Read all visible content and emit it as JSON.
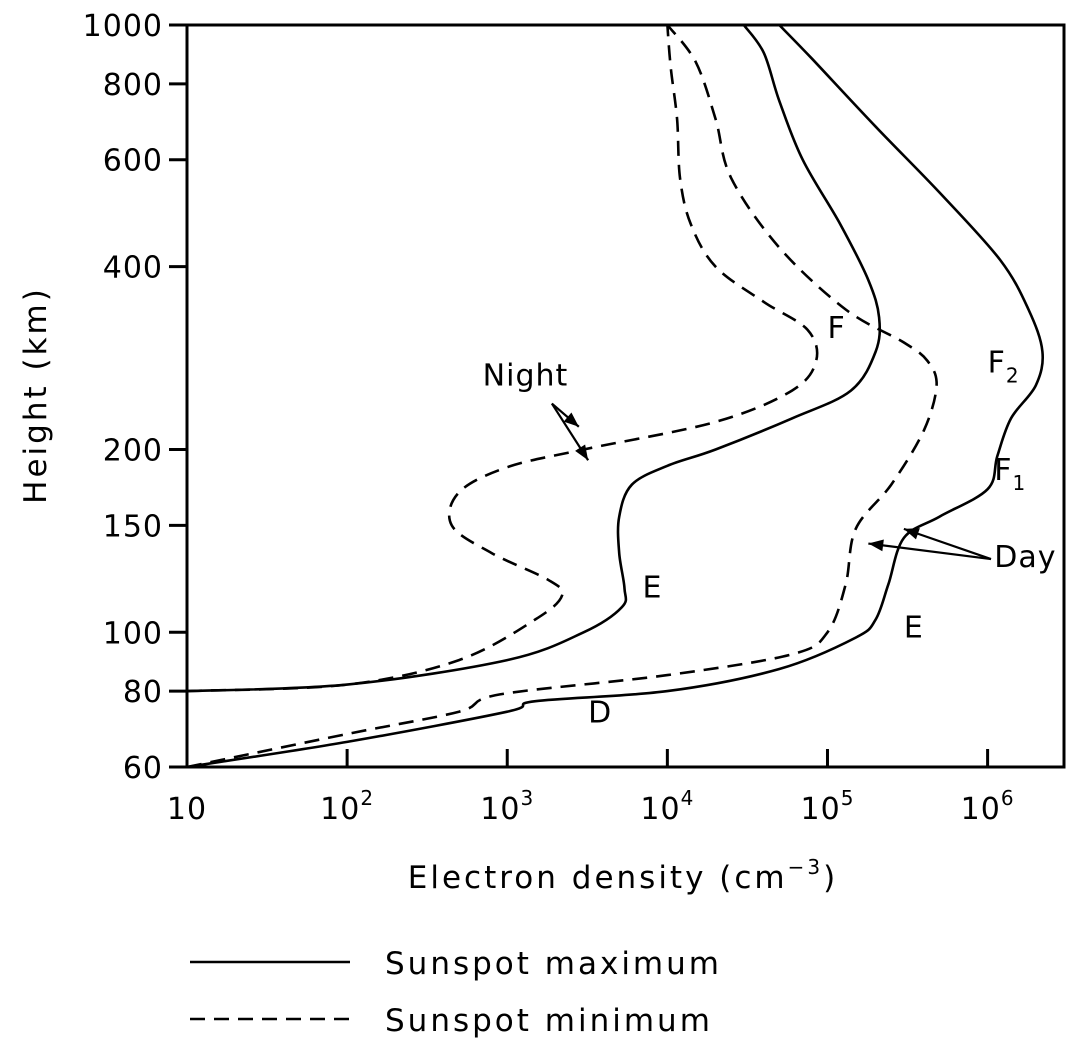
{
  "chart_data": {
    "type": "line",
    "title": "",
    "xlabel": "Electron density (cm",
    "xlabel_exp": "−3",
    "xlabel_close": ")",
    "ylabel": "Height (km)",
    "xscale": "log",
    "yscale": "log",
    "xlim": [
      10,
      3000000
    ],
    "ylim": [
      60,
      1000
    ],
    "grid": false,
    "legend_placement": "bottom",
    "x_ticks": [
      {
        "value": 10,
        "base": "10",
        "exp": ""
      },
      {
        "value": 100,
        "base": "10",
        "exp": "2"
      },
      {
        "value": 1000,
        "base": "10",
        "exp": "3"
      },
      {
        "value": 10000,
        "base": "10",
        "exp": "4"
      },
      {
        "value": 100000,
        "base": "10",
        "exp": "5"
      },
      {
        "value": 1000000,
        "base": "10",
        "exp": "6"
      }
    ],
    "y_ticks": [
      {
        "value": 1000,
        "label": "1000"
      },
      {
        "value": 800,
        "label": "800"
      },
      {
        "value": 600,
        "label": "600"
      },
      {
        "value": 400,
        "label": "400"
      },
      {
        "value": 200,
        "label": "200"
      },
      {
        "value": 150,
        "label": "150"
      },
      {
        "value": 100,
        "label": "100"
      },
      {
        "value": 80,
        "label": "80"
      },
      {
        "value": 60,
        "label": "60"
      }
    ],
    "series": [
      {
        "name": "Sunspot maximum",
        "condition": "Night",
        "style": "solid",
        "points": [
          [
            10,
            80
          ],
          [
            100,
            82
          ],
          [
            1000,
            90
          ],
          [
            3000,
            100
          ],
          [
            5200,
            110
          ],
          [
            5400,
            118
          ],
          [
            5000,
            135
          ],
          [
            5000,
            155
          ],
          [
            6000,
            175
          ],
          [
            10000,
            188
          ],
          [
            20000,
            200
          ],
          [
            60000,
            225
          ],
          [
            140000,
            250
          ],
          [
            200000,
            290
          ],
          [
            210000,
            330
          ],
          [
            180000,
            380
          ],
          [
            120000,
            470
          ],
          [
            70000,
            600
          ],
          [
            50000,
            750
          ],
          [
            40000,
            900
          ],
          [
            30000,
            1000
          ]
        ]
      },
      {
        "name": "Sunspot minimum",
        "condition": "Night",
        "style": "dashed",
        "points": [
          [
            10,
            80
          ],
          [
            100,
            82
          ],
          [
            500,
            90
          ],
          [
            1500,
            105
          ],
          [
            2200,
            115
          ],
          [
            1800,
            122
          ],
          [
            800,
            135
          ],
          [
            450,
            150
          ],
          [
            500,
            170
          ],
          [
            1000,
            187
          ],
          [
            3000,
            200
          ],
          [
            20000,
            222
          ],
          [
            60000,
            250
          ],
          [
            85000,
            280
          ],
          [
            75000,
            315
          ],
          [
            40000,
            350
          ],
          [
            20000,
            400
          ],
          [
            14000,
            470
          ],
          [
            12000,
            560
          ],
          [
            11500,
            700
          ],
          [
            10500,
            850
          ],
          [
            10000,
            1000
          ]
        ]
      },
      {
        "name": "Sunspot maximum",
        "condition": "Day",
        "style": "solid",
        "points": [
          [
            10,
            60
          ],
          [
            100,
            66
          ],
          [
            1000,
            74
          ],
          [
            1500,
            77
          ],
          [
            10000,
            80
          ],
          [
            50000,
            87
          ],
          [
            150000,
            98
          ],
          [
            200000,
            105
          ],
          [
            240000,
            120
          ],
          [
            300000,
            143
          ],
          [
            500000,
            155
          ],
          [
            1000000,
            172
          ],
          [
            1150000,
            195
          ],
          [
            1400000,
            225
          ],
          [
            2000000,
            255
          ],
          [
            2200000,
            290
          ],
          [
            1800000,
            340
          ],
          [
            1200000,
            410
          ],
          [
            500000,
            530
          ],
          [
            200000,
            680
          ],
          [
            80000,
            880
          ],
          [
            50000,
            1000
          ]
        ]
      },
      {
        "name": "Sunspot minimum",
        "condition": "Day",
        "style": "dashed",
        "points": [
          [
            10,
            60
          ],
          [
            100,
            68
          ],
          [
            500,
            74
          ],
          [
            900,
            79
          ],
          [
            10000,
            85
          ],
          [
            60000,
            92
          ],
          [
            100000,
            100
          ],
          [
            130000,
            120
          ],
          [
            150000,
            148
          ],
          [
            250000,
            175
          ],
          [
            400000,
            215
          ],
          [
            480000,
            255
          ],
          [
            420000,
            280
          ],
          [
            300000,
            300
          ],
          [
            130000,
            340
          ],
          [
            50000,
            430
          ],
          [
            25000,
            560
          ],
          [
            20000,
            700
          ],
          [
            15000,
            870
          ],
          [
            10000,
            1000
          ]
        ]
      }
    ],
    "annotations": [
      {
        "text": "Night",
        "sub": "",
        "x": 1300,
        "y": 255,
        "anchor": "middle"
      },
      {
        "text": "Day",
        "sub": "",
        "x": 1100000,
        "y": 128,
        "anchor": "start"
      },
      {
        "text": "F",
        "sub": "",
        "x": 100000,
        "y": 305,
        "anchor": "start"
      },
      {
        "text": "F",
        "sub": "2",
        "x": 1000000,
        "y": 268,
        "anchor": "start"
      },
      {
        "text": "F",
        "sub": "1",
        "x": 1100000,
        "y": 178,
        "anchor": "start"
      },
      {
        "text": "E",
        "sub": "",
        "x": 7000,
        "y": 114,
        "anchor": "start"
      },
      {
        "text": "E",
        "sub": "",
        "x": 300000,
        "y": 98,
        "anchor": "start"
      },
      {
        "text": "D",
        "sub": "",
        "x": 3200,
        "y": 71,
        "anchor": "start"
      }
    ],
    "arrows": [
      {
        "from": [
          1900,
          238
        ],
        "to": [
          2800,
          218
        ]
      },
      {
        "from": [
          1900,
          238
        ],
        "to": [
          3200,
          192
        ]
      },
      {
        "from": [
          1050000,
          132
        ],
        "to": [
          300000,
          148
        ]
      },
      {
        "from": [
          1050000,
          132
        ],
        "to": [
          180000,
          140
        ]
      }
    ],
    "legend": [
      {
        "label": "Sunspot maximum",
        "style": "solid"
      },
      {
        "label": "Sunspot minimum",
        "style": "dashed"
      }
    ]
  }
}
